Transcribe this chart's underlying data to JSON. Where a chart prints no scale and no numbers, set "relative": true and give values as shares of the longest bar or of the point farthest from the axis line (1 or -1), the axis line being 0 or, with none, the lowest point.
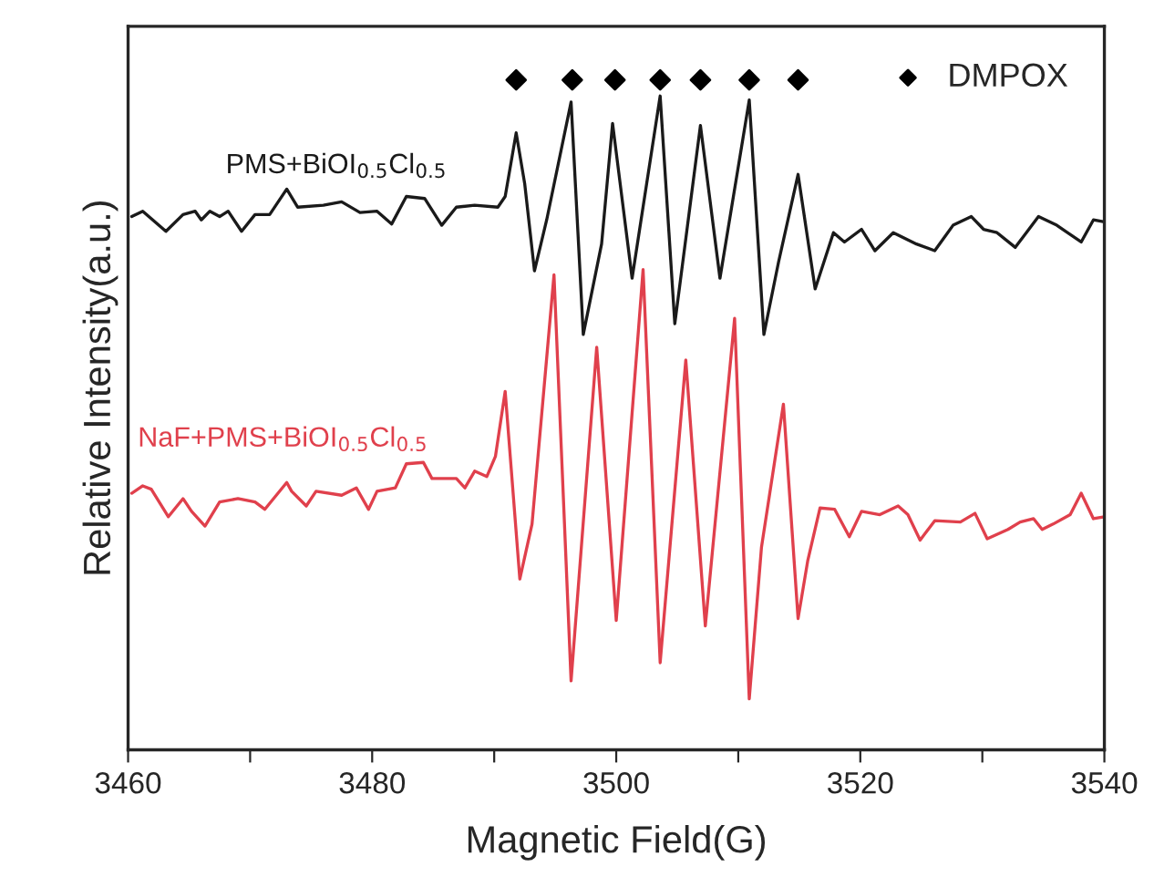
{
  "chart_data": {
    "type": "line",
    "relative": true,
    "xlabel": "Magnetic Field(G)",
    "ylabel": "Relative Intensity(a.u.)",
    "xlim": [
      3460,
      3540
    ],
    "xticks": [
      3460,
      {
        "value": 3470,
        "label": null
      },
      3480,
      {
        "value": 3490,
        "label": null
      },
      3500,
      {
        "value": 3510,
        "label": null
      },
      3520,
      {
        "value": 3530,
        "label": null
      },
      3540
    ],
    "grid": false,
    "legend": "top right",
    "series": [
      {
        "name": "PMS+BiOI$_{0.5}$Cl$_{0.5}$",
        "color": "#1a1a1a",
        "x": [
          3460.3,
          3461.2,
          3463.1,
          3464.5,
          3465.5,
          3466.0,
          3466.7,
          3467.5,
          3468.2,
          3469.3,
          3470.4,
          3471.6,
          3473.0,
          3473.9,
          3476.0,
          3477.5,
          3479.0,
          3480.4,
          3481.6,
          3482.8,
          3484.3,
          3485.7,
          3486.9,
          3488.4,
          3490.3,
          3490.9,
          3491.8,
          3492.5,
          3493.3,
          3494.3,
          3496.3,
          3497.3,
          3498.8,
          3499.7,
          3501.3,
          3503.6,
          3504.8,
          3506.9,
          3508.5,
          3510.9,
          3512.1,
          3513.3,
          3514.9,
          3516.3,
          3517.8,
          3518.7,
          3520.1,
          3521.2,
          3522.7,
          3524.6,
          3526.1,
          3527.6,
          3529.1,
          3530.1,
          3531.2,
          3532.7,
          3534.6,
          3536.1,
          3538.1,
          3539.1,
          3540.0
        ],
        "values": [
          0.796,
          0.804,
          0.774,
          0.799,
          0.804,
          0.791,
          0.804,
          0.796,
          0.804,
          0.774,
          0.799,
          0.799,
          0.837,
          0.81,
          0.813,
          0.818,
          0.802,
          0.804,
          0.785,
          0.826,
          0.823,
          0.783,
          0.81,
          0.813,
          0.81,
          0.826,
          0.921,
          0.845,
          0.715,
          0.791,
          0.967,
          0.62,
          0.755,
          0.935,
          0.704,
          0.976,
          0.636,
          0.932,
          0.704,
          0.97,
          0.62,
          0.728,
          0.859,
          0.688,
          0.772,
          0.758,
          0.777,
          0.745,
          0.772,
          0.755,
          0.745,
          0.783,
          0.796,
          0.777,
          0.772,
          0.75,
          0.796,
          0.783,
          0.758,
          0.791,
          0.788
        ]
      },
      {
        "name": "NaF+PMS+BiOI$_{0.5}$Cl$_{0.5}$",
        "color": "#e0404c",
        "x": [
          3460.3,
          3461.2,
          3461.9,
          3463.3,
          3464.5,
          3465.2,
          3466.3,
          3467.5,
          3469.0,
          3470.4,
          3471.2,
          3473.0,
          3473.4,
          3474.6,
          3475.4,
          3477.5,
          3478.7,
          3479.7,
          3480.4,
          3481.9,
          3482.8,
          3484.2,
          3484.9,
          3486.9,
          3487.6,
          3488.4,
          3489.4,
          3490.1,
          3490.9,
          3492.1,
          3493.1,
          3494.9,
          3496.3,
          3498.4,
          3500.0,
          3502.2,
          3503.6,
          3505.7,
          3507.3,
          3509.7,
          3510.9,
          3511.9,
          3513.7,
          3514.9,
          3515.7,
          3516.7,
          3517.9,
          3519.1,
          3520.1,
          3521.6,
          3523.1,
          3523.9,
          3524.9,
          3526.1,
          3528.2,
          3529.4,
          3530.4,
          3532.1,
          3533.1,
          3534.2,
          3534.9,
          3535.8,
          3537.2,
          3538.1,
          3539.1,
          3540.0
        ],
        "values": [
          0.383,
          0.394,
          0.389,
          0.348,
          0.375,
          0.356,
          0.334,
          0.37,
          0.375,
          0.37,
          0.359,
          0.399,
          0.386,
          0.364,
          0.386,
          0.38,
          0.391,
          0.359,
          0.386,
          0.391,
          0.427,
          0.429,
          0.405,
          0.405,
          0.391,
          0.416,
          0.408,
          0.438,
          0.535,
          0.255,
          0.337,
          0.709,
          0.103,
          0.601,
          0.193,
          0.717,
          0.13,
          0.582,
          0.185,
          0.644,
          0.076,
          0.302,
          0.516,
          0.196,
          0.283,
          0.361,
          0.359,
          0.318,
          0.356,
          0.351,
          0.364,
          0.351,
          0.313,
          0.342,
          0.34,
          0.353,
          0.315,
          0.329,
          0.34,
          0.345,
          0.329,
          0.337,
          0.351,
          0.383,
          0.345,
          0.348
        ]
      },
      {
        "name": "DMPOX",
        "color": "#000000",
        "type": "scatter",
        "marker": "diamond",
        "x": [
          3491.8,
          3496.4,
          3499.9,
          3503.6,
          3506.9,
          3510.9,
          3514.9
        ],
        "values": [
          1,
          1,
          1,
          1,
          1,
          1,
          1
        ]
      }
    ]
  }
}
